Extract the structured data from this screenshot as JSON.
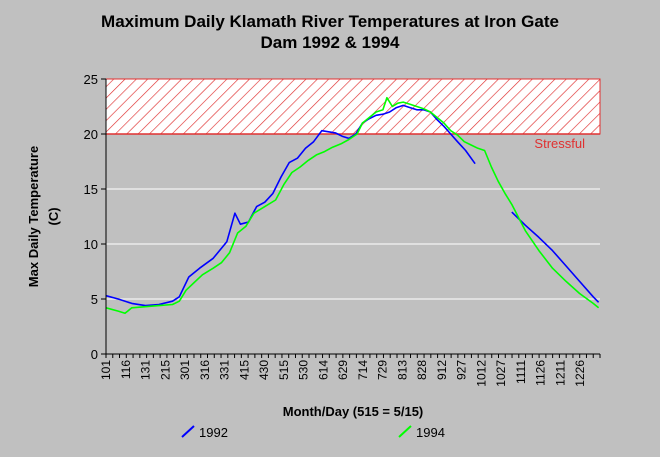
{
  "chart_data": {
    "type": "line",
    "title": "Maximum Daily Klamath River Temperatures at Iron Gate Dam 1992 & 1994",
    "title_lines": [
      "Maximum Daily Klamath River Temperatures at Iron Gate",
      "Dam 1992 & 1994"
    ],
    "xlabel": "Month/Day (515 = 5/15)",
    "ylabel_lines": [
      "Max Daily Temperature",
      "(C)"
    ],
    "ylim": [
      0,
      25
    ],
    "yticks": [
      0,
      5,
      10,
      15,
      20,
      25
    ],
    "x_categories": [
      "101",
      "116",
      "131",
      "215",
      "301",
      "316",
      "331",
      "415",
      "430",
      "515",
      "530",
      "614",
      "629",
      "714",
      "729",
      "813",
      "828",
      "912",
      "927",
      "1012",
      "1027",
      "1111",
      "1126",
      "1211",
      "1226"
    ],
    "grid": true,
    "threshold": {
      "value": 20,
      "label": "Stressful",
      "band": [
        20,
        25
      ],
      "color": "#e03030"
    },
    "series": [
      {
        "name": "1992",
        "color": "#0000ff",
        "gaps_after_day": [
          273
        ],
        "points": [
          [
            1,
            5.3
          ],
          [
            10,
            5.0
          ],
          [
            20,
            4.6
          ],
          [
            30,
            4.4
          ],
          [
            40,
            4.5
          ],
          [
            50,
            4.8
          ],
          [
            55,
            5.2
          ],
          [
            62,
            7.0
          ],
          [
            70,
            7.8
          ],
          [
            80,
            8.7
          ],
          [
            90,
            10.2
          ],
          [
            96,
            12.8
          ],
          [
            100,
            11.8
          ],
          [
            106,
            12.0
          ],
          [
            112,
            13.4
          ],
          [
            118,
            13.8
          ],
          [
            124,
            14.6
          ],
          [
            130,
            16.1
          ],
          [
            136,
            17.4
          ],
          [
            142,
            17.8
          ],
          [
            148,
            18.7
          ],
          [
            154,
            19.3
          ],
          [
            160,
            20.3
          ],
          [
            165,
            20.2
          ],
          [
            170,
            20.1
          ],
          [
            175,
            19.8
          ],
          [
            180,
            19.6
          ],
          [
            185,
            20.0
          ],
          [
            190,
            21.0
          ],
          [
            195,
            21.4
          ],
          [
            200,
            21.7
          ],
          [
            205,
            21.8
          ],
          [
            210,
            22.0
          ],
          [
            215,
            22.4
          ],
          [
            220,
            22.6
          ],
          [
            225,
            22.4
          ],
          [
            230,
            22.2
          ],
          [
            235,
            22.2
          ],
          [
            240,
            22.0
          ],
          [
            245,
            21.3
          ],
          [
            250,
            20.7
          ],
          [
            255,
            20.0
          ],
          [
            260,
            19.3
          ],
          [
            266,
            18.5
          ],
          [
            273,
            17.3
          ],
          [
            300,
            12.9
          ],
          [
            310,
            11.7
          ],
          [
            320,
            10.6
          ],
          [
            330,
            9.4
          ],
          [
            340,
            8.0
          ],
          [
            350,
            6.6
          ],
          [
            360,
            5.2
          ],
          [
            364,
            4.7
          ]
        ]
      },
      {
        "name": "1994",
        "color": "#00ff00",
        "gaps_after_day": [],
        "points": [
          [
            1,
            4.2
          ],
          [
            10,
            3.9
          ],
          [
            15,
            3.7
          ],
          [
            20,
            4.2
          ],
          [
            30,
            4.3
          ],
          [
            40,
            4.4
          ],
          [
            50,
            4.5
          ],
          [
            55,
            4.8
          ],
          [
            60,
            5.8
          ],
          [
            66,
            6.5
          ],
          [
            72,
            7.2
          ],
          [
            80,
            7.8
          ],
          [
            86,
            8.3
          ],
          [
            92,
            9.2
          ],
          [
            98,
            11.0
          ],
          [
            104,
            11.6
          ],
          [
            110,
            12.8
          ],
          [
            118,
            13.4
          ],
          [
            126,
            14.0
          ],
          [
            132,
            15.4
          ],
          [
            138,
            16.5
          ],
          [
            144,
            17.0
          ],
          [
            150,
            17.6
          ],
          [
            156,
            18.1
          ],
          [
            162,
            18.4
          ],
          [
            168,
            18.8
          ],
          [
            174,
            19.1
          ],
          [
            180,
            19.5
          ],
          [
            186,
            20.0
          ],
          [
            190,
            21.0
          ],
          [
            195,
            21.5
          ],
          [
            200,
            22.0
          ],
          [
            205,
            22.2
          ],
          [
            208,
            23.3
          ],
          [
            212,
            22.5
          ],
          [
            216,
            22.8
          ],
          [
            220,
            22.9
          ],
          [
            225,
            22.7
          ],
          [
            230,
            22.5
          ],
          [
            235,
            22.3
          ],
          [
            240,
            22.0
          ],
          [
            245,
            21.5
          ],
          [
            250,
            21.0
          ],
          [
            255,
            20.3
          ],
          [
            260,
            19.9
          ],
          [
            265,
            19.3
          ],
          [
            270,
            19.0
          ],
          [
            275,
            18.7
          ],
          [
            280,
            18.5
          ],
          [
            285,
            17.0
          ],
          [
            290,
            15.7
          ],
          [
            295,
            14.6
          ],
          [
            300,
            13.6
          ],
          [
            305,
            12.4
          ],
          [
            310,
            11.2
          ],
          [
            320,
            9.4
          ],
          [
            330,
            7.8
          ],
          [
            340,
            6.6
          ],
          [
            350,
            5.5
          ],
          [
            360,
            4.6
          ],
          [
            364,
            4.2
          ]
        ]
      }
    ]
  },
  "legend": [
    {
      "name": "1992",
      "color": "#0000ff"
    },
    {
      "name": "1994",
      "color": "#00ff00"
    }
  ]
}
